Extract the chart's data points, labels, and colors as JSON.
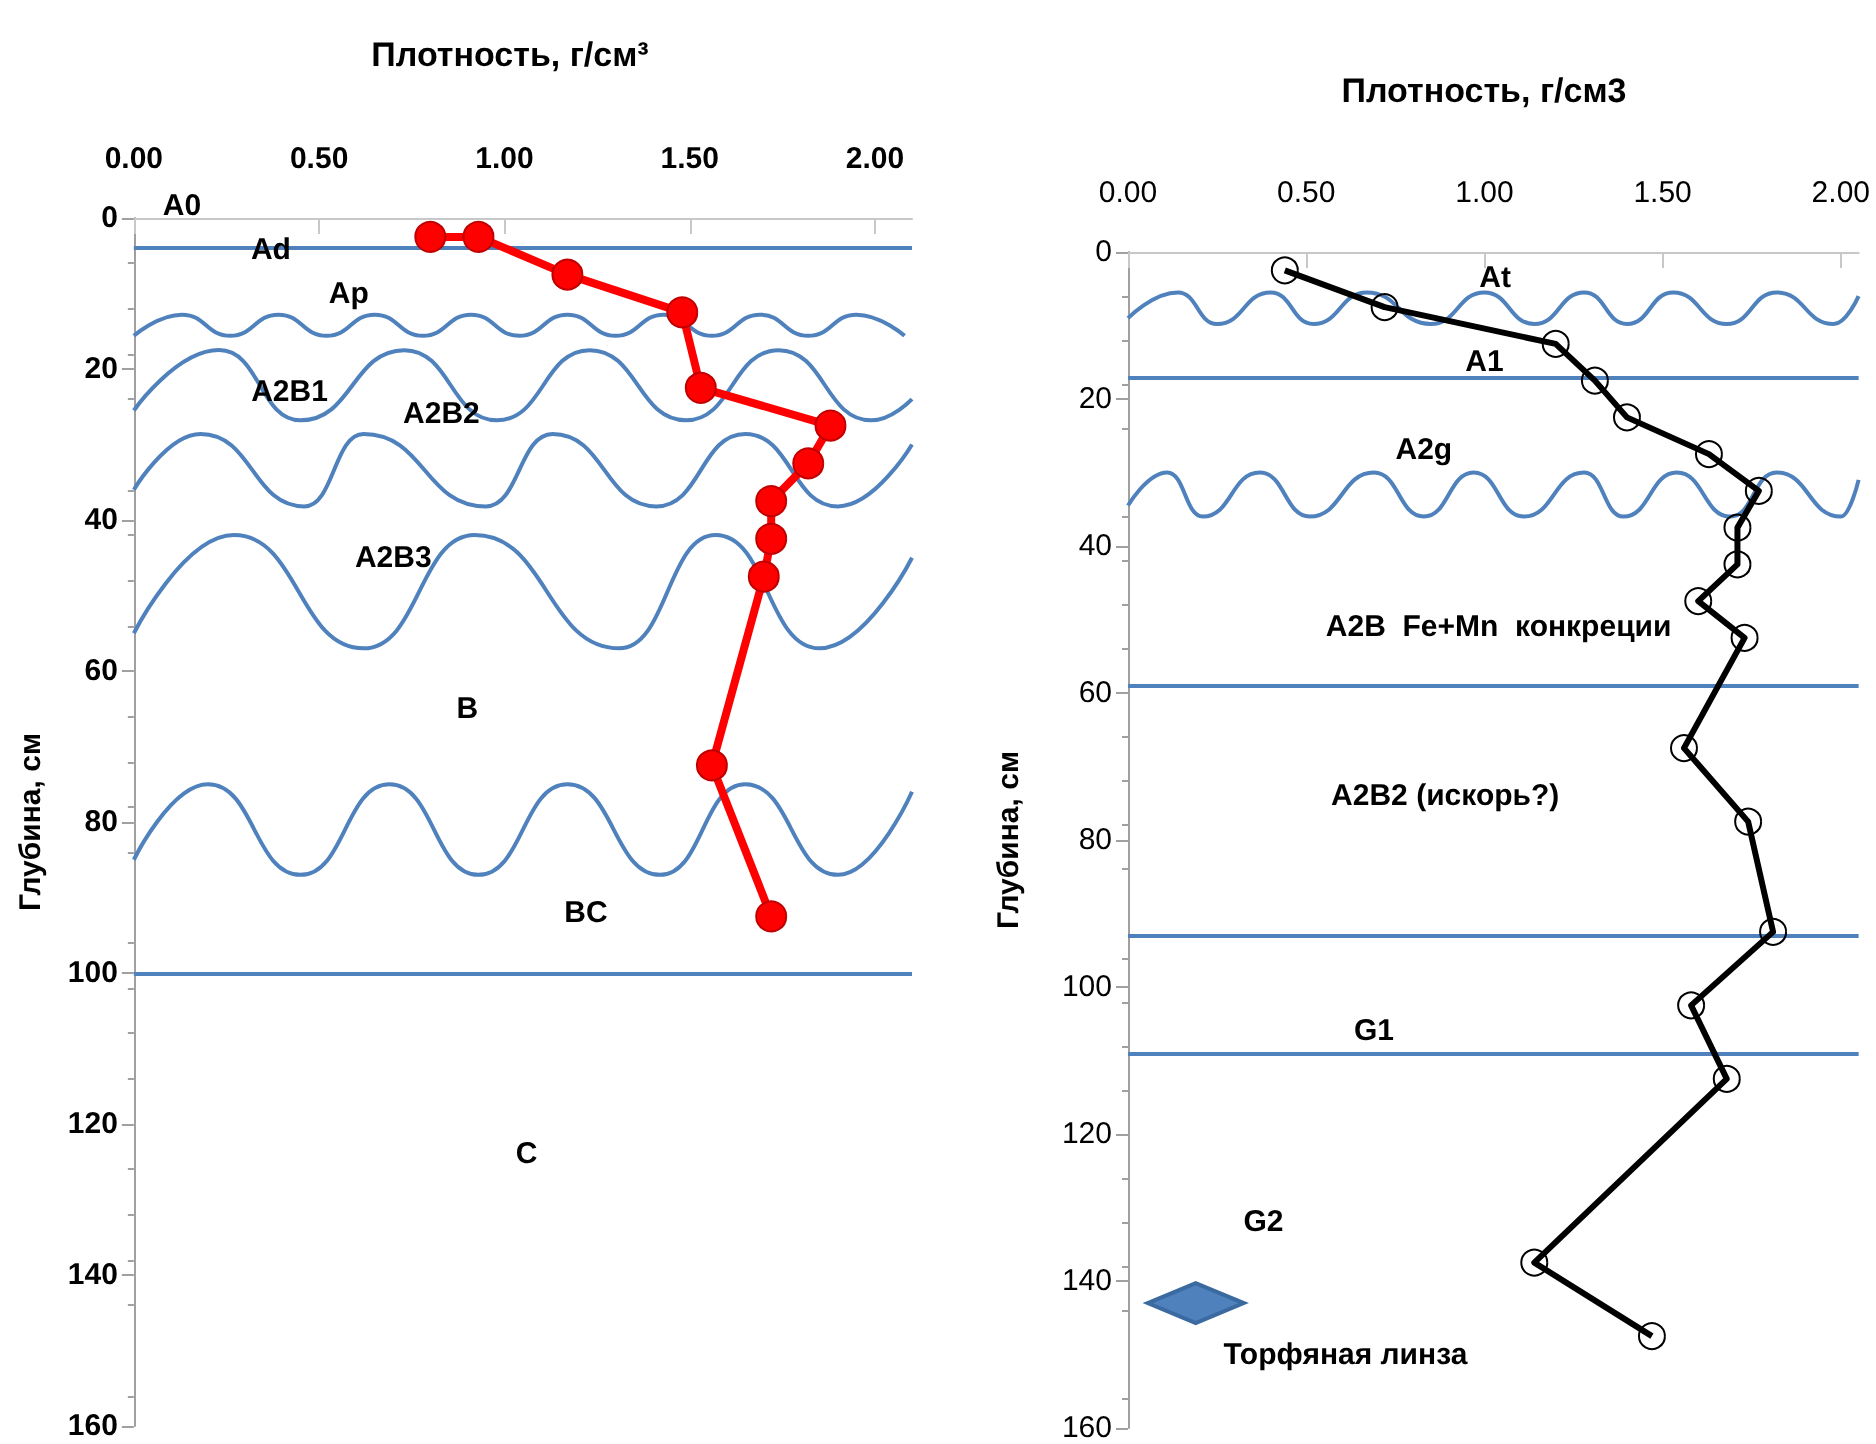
{
  "chart_data": [
    {
      "type": "line",
      "title": "Плотность, г/см³",
      "ylabel": "Глубина, см",
      "series": [
        {
          "color": "#ff0000",
          "x": [
            0.8,
            0.93,
            1.17,
            1.48,
            1.53,
            1.88,
            1.82,
            1.72,
            1.72,
            1.7,
            1.56,
            1.72
          ],
          "values": [
            2.5,
            2.5,
            7.5,
            12.5,
            22.5,
            27.5,
            32.5,
            37.5,
            42.5,
            47.5,
            72.5,
            92.5
          ]
        },
        {
          "color": "#4f81bd",
          "marker": "none",
          "x": [
            0,
            0.13,
            0.26,
            0.39,
            0.52,
            0.65,
            0.78,
            0.91,
            1.04,
            1.17,
            1.3,
            1.43,
            1.56,
            1.69,
            1.82,
            1.95,
            2.08
          ],
          "values": [
            15.6,
            12.8,
            15.6,
            12.8,
            15.6,
            12.8,
            15.6,
            12.8,
            15.6,
            12.8,
            15.6,
            12.8,
            15.6,
            12.8,
            15.6,
            12.8,
            15.6
          ]
        },
        {
          "color": "#4f81bd",
          "marker": "none",
          "x": [
            0,
            0.23,
            0.45,
            0.73,
            0.98,
            1.23,
            1.49,
            1.74,
            1.99,
            2.1
          ],
          "values": [
            25.5,
            17.5,
            26.8,
            17.5,
            26.8,
            17.5,
            26.8,
            17.5,
            26.8,
            24
          ]
        },
        {
          "color": "#4f81bd",
          "marker": "none",
          "x": [
            0,
            0.18,
            0.46,
            0.62,
            0.95,
            1.13,
            1.41,
            1.65,
            1.9,
            2.1
          ],
          "values": [
            36,
            28.6,
            38.2,
            28.6,
            38.2,
            28.6,
            38.2,
            28.6,
            38.2,
            30
          ]
        },
        {
          "color": "#4f81bd",
          "marker": "none",
          "x": [
            0,
            0.27,
            0.62,
            0.92,
            1.31,
            1.57,
            1.85,
            2.1
          ],
          "values": [
            55,
            42,
            57,
            42,
            57,
            42,
            57,
            45
          ]
        },
        {
          "color": "#4f81bd",
          "marker": "none",
          "x": [
            0,
            0.2,
            0.45,
            0.69,
            0.93,
            1.17,
            1.42,
            1.65,
            1.9,
            2.1
          ],
          "values": [
            85,
            75,
            87,
            75,
            87,
            75,
            87,
            75,
            87,
            76
          ]
        }
      ],
      "marker": "circle",
      "line_style": "solid",
      "grid": false,
      "xlim": [
        0,
        2.1
      ],
      "xticks": [
        {
          "value": 0,
          "label": "0.00"
        },
        {
          "value": 0.5,
          "label": "0.50"
        },
        {
          "value": 1,
          "label": "1.00"
        },
        {
          "value": 1.5,
          "label": "1.50"
        },
        {
          "value": 2,
          "label": "2.00"
        }
      ],
      "ylim": [
        160,
        0
      ],
      "yticks": [
        0,
        20,
        40,
        60,
        80,
        100,
        120,
        140,
        160
      ],
      "ref_lines": [
        {
          "axis": "y",
          "value": 4,
          "color": "#4f81bd"
        },
        {
          "axis": "y",
          "value": 100,
          "color": "#4f81bd"
        }
      ],
      "annotations": [
        "A0",
        "Ad",
        "Ap",
        "A2B1",
        "A2B2",
        "A2B3",
        "B",
        "BC",
        "C"
      ]
    },
    {
      "type": "line",
      "title": "Плотность, г/см3",
      "ylabel": "Глубина, см",
      "series": [
        {
          "color": "#000000",
          "x": [
            0.44,
            0.72,
            1.2,
            1.31,
            1.4,
            1.63,
            1.77,
            1.71,
            1.71,
            1.6,
            1.73,
            1.56,
            1.74,
            1.81,
            1.58,
            1.68,
            1.14,
            1.47
          ],
          "values": [
            2.5,
            7.5,
            12.5,
            17.5,
            22.5,
            27.5,
            32.5,
            37.5,
            42.5,
            47.5,
            52.5,
            67.5,
            77.5,
            92.5,
            102.5,
            112.5,
            137.5,
            147.5
          ]
        },
        {
          "color": "#4f81bd",
          "marker": "none",
          "x": [
            0,
            0.14,
            0.25,
            0.4,
            0.52,
            0.67,
            0.85,
            1.0,
            1.14,
            1.28,
            1.4,
            1.53,
            1.68,
            1.82,
            1.98,
            2.05
          ],
          "values": [
            9,
            5.5,
            9.8,
            5.5,
            9.8,
            5.5,
            9.8,
            5.5,
            9.8,
            5.5,
            9.8,
            5.5,
            9.8,
            5.5,
            9.8,
            6
          ]
        },
        {
          "color": "#4f81bd",
          "marker": "none",
          "x": [
            0,
            0.11,
            0.21,
            0.37,
            0.51,
            0.69,
            0.83,
            0.97,
            1.11,
            1.28,
            1.39,
            1.54,
            1.69,
            1.82,
            2.0,
            2.05
          ],
          "values": [
            34.5,
            30,
            36,
            30,
            36,
            30,
            36,
            30,
            36,
            30,
            36,
            30,
            36,
            30,
            36,
            31
          ]
        }
      ],
      "marker": "circle",
      "line_style": "solid",
      "grid": false,
      "xlim": [
        0,
        2.05
      ],
      "xticks": [
        {
          "value": 0,
          "label": "0.00"
        },
        {
          "value": 0.5,
          "label": "0.50"
        },
        {
          "value": 1,
          "label": "1.00"
        },
        {
          "value": 1.5,
          "label": "1.50"
        },
        {
          "value": 2,
          "label": "2.00"
        }
      ],
      "ylim": [
        160,
        0
      ],
      "yticks": [
        0,
        20,
        40,
        60,
        80,
        100,
        120,
        140,
        160
      ],
      "ref_lines": [
        {
          "axis": "y",
          "value": 17,
          "color": "#4f81bd"
        },
        {
          "axis": "y",
          "value": 59,
          "color": "#4f81bd"
        },
        {
          "axis": "y",
          "value": 93,
          "color": "#4f81bd"
        },
        {
          "axis": "y",
          "value": 109,
          "color": "#4f81bd"
        }
      ],
      "annotations": [
        "At",
        "A1",
        "A2g",
        "A2B  Fe+Mn  конкреции",
        "A2B2 (искорь?)",
        "G1",
        "G2",
        "Торфяная линза"
      ]
    }
  ]
}
